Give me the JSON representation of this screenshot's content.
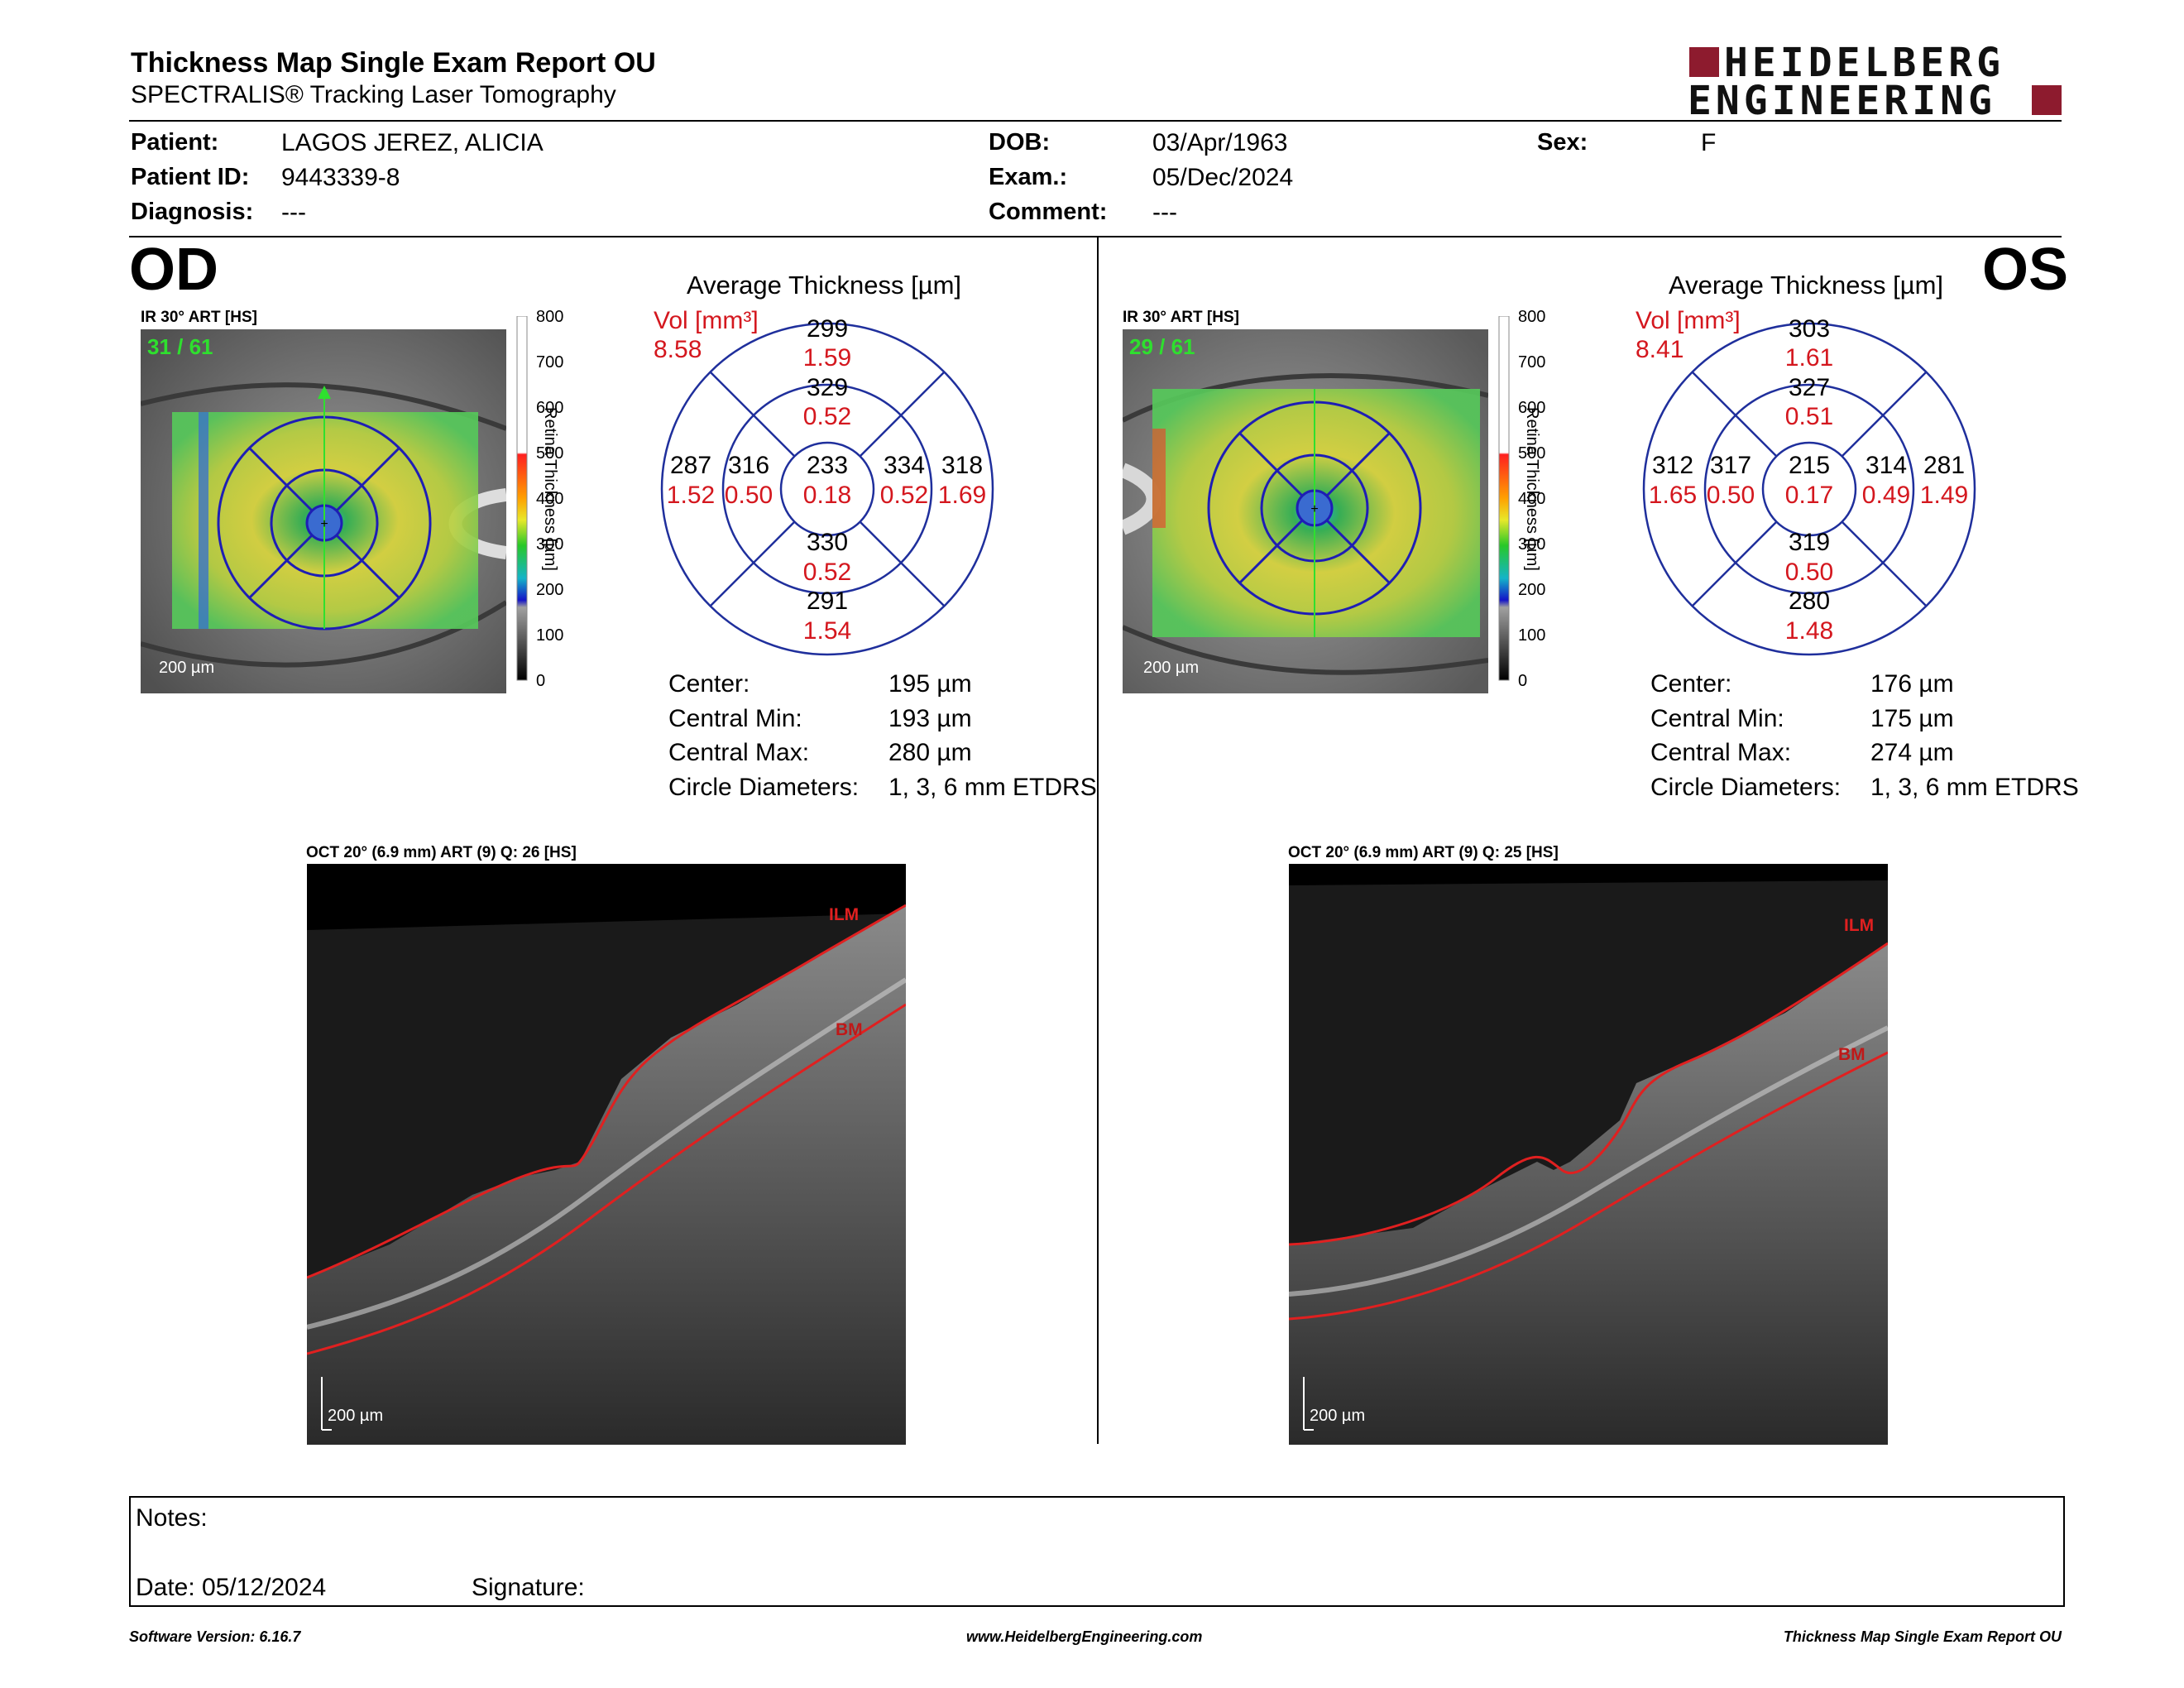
{
  "report": {
    "title": "Thickness Map Single Exam Report OU",
    "subtitle": "SPECTRALIS® Tracking Laser Tomography",
    "logo_line1": "HEIDELBERG",
    "logo_line2": "ENGINEERING"
  },
  "patient": {
    "patient_label": "Patient:",
    "patient_value": "LAGOS JEREZ, ALICIA",
    "id_label": "Patient ID:",
    "id_value": "9443339-8",
    "diagnosis_label": "Diagnosis:",
    "diagnosis_value": "---",
    "dob_label": "DOB:",
    "dob_value": "03/Apr/1963",
    "exam_label": "Exam.:",
    "exam_value": "05/Dec/2024",
    "comment_label": "Comment:",
    "comment_value": "---",
    "sex_label": "Sex:",
    "sex_value": "F"
  },
  "scale": {
    "ticks": [
      "800",
      "700",
      "600",
      "500",
      "400",
      "300",
      "200",
      "100",
      "0"
    ],
    "label": "Retina Thickness [µm]"
  },
  "od": {
    "eye_label": "OD",
    "ir_label": "IR 30° ART [HS]",
    "frame_counter": "31 / 61",
    "ir_scale": "200 µm",
    "avg_title": "Average Thickness [µm]",
    "vol_label": "Vol [mm³]",
    "vol_value": "8.58",
    "sectors": {
      "outer_top": {
        "t": "299",
        "v": "1.59"
      },
      "inner_top": {
        "t": "329",
        "v": "0.52"
      },
      "outer_left": {
        "t": "287",
        "v": "1.52"
      },
      "inner_left": {
        "t": "316",
        "v": "0.50"
      },
      "center": {
        "t": "233",
        "v": "0.18"
      },
      "inner_right": {
        "t": "334",
        "v": "0.52"
      },
      "outer_right": {
        "t": "318",
        "v": "1.69"
      },
      "inner_bottom": {
        "t": "330",
        "v": "0.52"
      },
      "outer_bottom": {
        "t": "291",
        "v": "1.54"
      }
    },
    "stats": {
      "center_label": "Center:",
      "center_value": "195 µm",
      "min_label": "Central Min:",
      "min_value": "193 µm",
      "max_label": "Central Max:",
      "max_value": "280 µm",
      "diam_label": "Circle Diameters:",
      "diam_value": "1, 3, 6 mm ETDRS"
    },
    "oct_label": "OCT 20° (6.9 mm) ART (9) Q: 26 [HS]",
    "oct_ilm": "ILM",
    "oct_bm": "BM",
    "oct_scale": "200 µm"
  },
  "os": {
    "eye_label": "OS",
    "ir_label": "IR 30° ART [HS]",
    "frame_counter": "29 / 61",
    "ir_scale": "200 µm",
    "avg_title": "Average Thickness [µm]",
    "vol_label": "Vol [mm³]",
    "vol_value": "8.41",
    "sectors": {
      "outer_top": {
        "t": "303",
        "v": "1.61"
      },
      "inner_top": {
        "t": "327",
        "v": "0.51"
      },
      "outer_left": {
        "t": "312",
        "v": "1.65"
      },
      "inner_left": {
        "t": "317",
        "v": "0.50"
      },
      "center": {
        "t": "215",
        "v": "0.17"
      },
      "inner_right": {
        "t": "314",
        "v": "0.49"
      },
      "outer_right": {
        "t": "281",
        "v": "1.49"
      },
      "inner_bottom": {
        "t": "319",
        "v": "0.50"
      },
      "outer_bottom": {
        "t": "280",
        "v": "1.48"
      }
    },
    "stats": {
      "center_label": "Center:",
      "center_value": "176 µm",
      "min_label": "Central Min:",
      "min_value": "175 µm",
      "max_label": "Central Max:",
      "max_value": "274 µm",
      "diam_label": "Circle Diameters:",
      "diam_value": "1, 3, 6 mm ETDRS"
    },
    "oct_label": "OCT 20° (6.9 mm) ART (9) Q: 25 [HS]",
    "oct_ilm": "ILM",
    "oct_bm": "BM",
    "oct_scale": "200 µm"
  },
  "notes": {
    "notes_label": "Notes:",
    "date_label": "Date: 05/12/2024",
    "signature_label": "Signature:"
  },
  "footer": {
    "left": "Software Version: 6.16.7",
    "center": "www.HeidelbergEngineering.com",
    "right": "Thickness Map Single Exam Report OU"
  },
  "colors": {
    "vol_red": "#d4171e",
    "circle_blue": "#1f2f9c",
    "logo_red": "#8d1b2e",
    "frame_green": "#2ee02e"
  }
}
